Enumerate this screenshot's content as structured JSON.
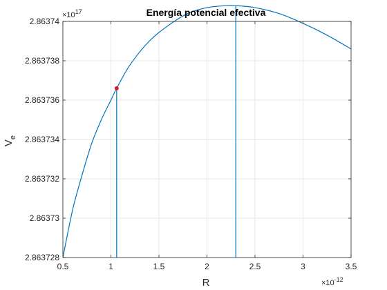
{
  "chart_data": {
    "type": "line",
    "title": "Energía potencial efectiva",
    "xlabel": "R",
    "ylabel_main": "V",
    "ylabel_sub": "e",
    "x_exponent_prefix": "×10",
    "x_exponent_power": "-12",
    "y_exponent_prefix": "×10",
    "y_exponent_power": "17",
    "xlim": [
      0.5,
      3.5
    ],
    "ylim": [
      2.863728,
      2.86374
    ],
    "xticks": [
      0.5,
      1,
      1.5,
      2,
      2.5,
      3,
      3.5
    ],
    "xtick_labels": [
      "0.5",
      "1",
      "1.5",
      "2",
      "2.5",
      "3",
      "3.5"
    ],
    "yticks": [
      2.863728,
      2.86373,
      2.863732,
      2.863734,
      2.863736,
      2.863738,
      2.86374
    ],
    "ytick_labels": [
      "2.863728",
      "2.86373",
      "2.863732",
      "2.863734",
      "2.863736",
      "2.863738",
      "2.86374"
    ],
    "grid": true,
    "series": [
      {
        "color": "#0072bd",
        "x": [
          0.5,
          0.6,
          0.7,
          0.8,
          0.9,
          1.0,
          1.06,
          1.2,
          1.4,
          1.6,
          1.8,
          2.0,
          2.2,
          2.3,
          2.5,
          2.75,
          3.0,
          3.25,
          3.5
        ],
        "y": [
          2.863728,
          2.8637304,
          2.8637322,
          2.8637338,
          2.863735,
          2.863736,
          2.8637366,
          2.8637378,
          2.863739,
          2.8637398,
          2.8637404,
          2.8637407,
          2.8637408,
          2.8637408,
          2.8637407,
          2.8637404,
          2.8637399,
          2.8637393,
          2.8637386
        ]
      }
    ],
    "vlines": [
      {
        "x": 1.06,
        "y_top": 2.8637366,
        "color": "#0072bd"
      },
      {
        "x": 2.3,
        "y_top": 2.8637408,
        "color": "#0072bd"
      }
    ],
    "marker": {
      "x": 1.06,
      "y": 2.8637366,
      "color": "#d62020"
    }
  }
}
